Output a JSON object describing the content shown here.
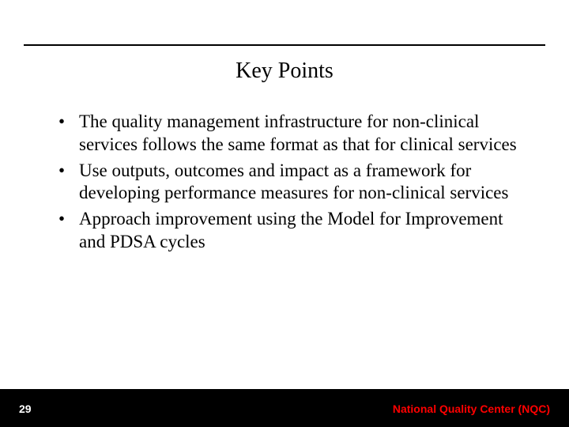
{
  "colors": {
    "rule": "#000000",
    "text": "#000000",
    "footer_bg": "#000000",
    "page_num": "#ffffff",
    "org": "#ff0000",
    "background": "#ffffff"
  },
  "typography": {
    "title_fontsize": 28,
    "body_fontsize": 23,
    "footer_fontsize": 14,
    "title_font": "Times New Roman",
    "body_font": "Times New Roman",
    "footer_font": "Arial"
  },
  "title": "Key Points",
  "bullets": [
    "The quality management infrastructure for non-clinical services follows the same format as that for clinical services",
    "Use outputs, outcomes and impact as a framework for developing performance measures for non-clinical services",
    "Approach improvement using the Model for Improvement and PDSA cycles"
  ],
  "footer": {
    "page_number": "29",
    "org": "National Quality Center (NQC)"
  }
}
